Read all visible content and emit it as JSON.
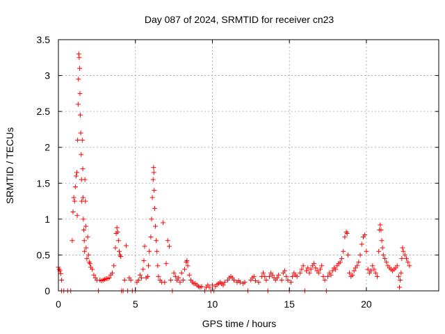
{
  "chart_data": {
    "type": "scatter",
    "title": "Day 087 of 2024, SRMTID for receiver cn23",
    "xlabel": "GPS time / hours",
    "ylabel": "SRMTID / TECUs",
    "xlim": [
      0,
      24.7
    ],
    "ylim": [
      0,
      3.5
    ],
    "xticks": [
      0,
      5,
      10,
      15,
      20
    ],
    "xtick_labels": [
      "0",
      "5",
      "10",
      "15",
      "20"
    ],
    "yticks": [
      0,
      0.5,
      1,
      1.5,
      2,
      2.5,
      3,
      3.5
    ],
    "ytick_labels": [
      "0",
      "0.5",
      "1",
      "1.5",
      "2",
      "2.5",
      "3",
      "3.5"
    ],
    "grid": true,
    "marker": "+",
    "color": "#ff0000",
    "series": [
      {
        "name": "SRMTID",
        "points": [
          [
            0.0,
            0.33
          ],
          [
            0.05,
            0.3
          ],
          [
            0.1,
            0.28
          ],
          [
            0.15,
            0.24
          ],
          [
            0.2,
            0.15
          ],
          [
            0.2,
            0.0
          ],
          [
            0.35,
            0.0
          ],
          [
            0.6,
            0.0
          ],
          [
            0.8,
            0.0
          ],
          [
            0.9,
            0.7
          ],
          [
            0.95,
            1.1
          ],
          [
            1.0,
            1.3
          ],
          [
            1.05,
            1.25
          ],
          [
            1.1,
            1.45
          ],
          [
            1.15,
            1.6
          ],
          [
            1.2,
            1.65
          ],
          [
            1.22,
            1.05
          ],
          [
            1.25,
            2.1
          ],
          [
            1.28,
            2.6
          ],
          [
            1.3,
            2.95
          ],
          [
            1.32,
            3.3
          ],
          [
            1.35,
            3.25
          ],
          [
            1.38,
            3.1
          ],
          [
            1.4,
            2.75
          ],
          [
            1.42,
            2.45
          ],
          [
            1.45,
            2.2
          ],
          [
            1.48,
            1.9
          ],
          [
            1.5,
            1.55
          ],
          [
            1.52,
            1.25
          ],
          [
            1.55,
            2.1
          ],
          [
            1.58,
            1.7
          ],
          [
            1.6,
            1.3
          ],
          [
            1.62,
            1.0
          ],
          [
            1.65,
            0.85
          ],
          [
            1.68,
            0.7
          ],
          [
            1.7,
            0.55
          ],
          [
            1.72,
            1.55
          ],
          [
            1.75,
            1.25
          ],
          [
            1.78,
            0.9
          ],
          [
            1.8,
            0.6
          ],
          [
            1.85,
            0.45
          ],
          [
            1.9,
            0.75
          ],
          [
            1.95,
            0.5
          ],
          [
            2.0,
            0.4
          ],
          [
            2.05,
            0.38
          ],
          [
            2.1,
            0.33
          ],
          [
            2.2,
            0.3
          ],
          [
            2.3,
            0.22
          ],
          [
            2.4,
            0.18
          ],
          [
            2.5,
            0.15
          ],
          [
            2.6,
            0.0
          ],
          [
            2.7,
            0.15
          ],
          [
            2.8,
            0.14
          ],
          [
            2.9,
            0.15
          ],
          [
            3.0,
            0.16
          ],
          [
            3.1,
            0.17
          ],
          [
            3.2,
            0.17
          ],
          [
            3.3,
            0.18
          ],
          [
            3.4,
            0.22
          ],
          [
            3.5,
            0.25
          ],
          [
            3.6,
            0.35
          ],
          [
            3.7,
            0.6
          ],
          [
            3.75,
            0.8
          ],
          [
            3.8,
            0.88
          ],
          [
            3.85,
            0.82
          ],
          [
            3.9,
            0.7
          ],
          [
            3.95,
            0.55
          ],
          [
            4.0,
            0.5
          ],
          [
            4.05,
            0.48
          ],
          [
            4.1,
            0.0
          ],
          [
            4.2,
            0.0
          ],
          [
            4.3,
            0.15
          ],
          [
            4.4,
            0.63
          ],
          [
            4.5,
            0.0
          ],
          [
            4.6,
            0.18
          ],
          [
            4.7,
            0.15
          ],
          [
            4.8,
            0.0
          ],
          [
            5.0,
            0.0
          ],
          [
            5.1,
            0.12
          ],
          [
            5.2,
            0.15
          ],
          [
            5.3,
            0.22
          ],
          [
            5.4,
            0.18
          ],
          [
            5.5,
            0.3
          ],
          [
            5.55,
            0.42
          ],
          [
            5.6,
            0.62
          ],
          [
            5.7,
            0.18
          ],
          [
            5.8,
            0.2
          ],
          [
            5.85,
            0.35
          ],
          [
            5.9,
            0.55
          ],
          [
            6.0,
            0.75
          ],
          [
            6.05,
            1.0
          ],
          [
            6.1,
            1.3
          ],
          [
            6.15,
            1.55
          ],
          [
            6.18,
            1.72
          ],
          [
            6.2,
            1.65
          ],
          [
            6.22,
            1.4
          ],
          [
            6.25,
            1.15
          ],
          [
            6.3,
            0.9
          ],
          [
            6.35,
            0.7
          ],
          [
            6.4,
            0.55
          ],
          [
            6.45,
            0.35
          ],
          [
            6.5,
            0.2
          ],
          [
            6.6,
            0.15
          ],
          [
            6.7,
            0.12
          ],
          [
            6.8,
            0.95
          ],
          [
            6.9,
            0.12
          ],
          [
            7.0,
            0.38
          ],
          [
            7.1,
            0.7
          ],
          [
            7.2,
            0.62
          ],
          [
            7.3,
            0.15
          ],
          [
            7.4,
            0.0
          ],
          [
            7.5,
            0.25
          ],
          [
            7.6,
            0.2
          ],
          [
            7.7,
            0.15
          ],
          [
            7.8,
            0.18
          ],
          [
            7.9,
            0.12
          ],
          [
            8.0,
            0.25
          ],
          [
            8.1,
            0.15
          ],
          [
            8.2,
            0.3
          ],
          [
            8.3,
            0.4
          ],
          [
            8.35,
            0.42
          ],
          [
            8.4,
            0.35
          ],
          [
            8.5,
            0.22
          ],
          [
            8.6,
            0.15
          ],
          [
            8.7,
            0.12
          ],
          [
            8.8,
            0.1
          ],
          [
            8.9,
            0.1
          ],
          [
            9.0,
            0.08
          ],
          [
            9.1,
            0.06
          ],
          [
            9.2,
            0.05
          ],
          [
            9.3,
            0.06
          ],
          [
            9.5,
            0.0
          ],
          [
            9.6,
            0.05
          ],
          [
            9.7,
            0.08
          ],
          [
            9.8,
            0.05
          ],
          [
            9.9,
            0.0
          ],
          [
            10.0,
            0.08
          ],
          [
            10.1,
            0.0
          ],
          [
            10.2,
            0.06
          ],
          [
            10.3,
            0.09
          ],
          [
            10.4,
            0.1
          ],
          [
            10.5,
            0.12
          ],
          [
            10.6,
            0.1
          ],
          [
            10.7,
            0.08
          ],
          [
            10.8,
            0.12
          ],
          [
            11.0,
            0.15
          ],
          [
            11.1,
            0.18
          ],
          [
            11.2,
            0.2
          ],
          [
            11.3,
            0.18
          ],
          [
            11.4,
            0.15
          ],
          [
            11.6,
            0.12
          ],
          [
            11.7,
            0.14
          ],
          [
            11.8,
            0.12
          ],
          [
            12.0,
            0.1
          ],
          [
            12.1,
            0.12
          ],
          [
            12.3,
            0.0
          ],
          [
            12.5,
            0.15
          ],
          [
            12.6,
            0.18
          ],
          [
            12.7,
            0.2
          ],
          [
            12.8,
            0.14
          ],
          [
            13.0,
            0.12
          ],
          [
            13.2,
            0.2
          ],
          [
            13.3,
            0.25
          ],
          [
            13.4,
            0.2
          ],
          [
            13.5,
            0.15
          ],
          [
            13.6,
            0.0
          ],
          [
            13.7,
            0.2
          ],
          [
            13.8,
            0.25
          ],
          [
            13.9,
            0.22
          ],
          [
            14.0,
            0.18
          ],
          [
            14.1,
            0.15
          ],
          [
            14.2,
            0.18
          ],
          [
            14.3,
            0.22
          ],
          [
            14.5,
            0.15
          ],
          [
            14.6,
            0.25
          ],
          [
            14.7,
            0.28
          ],
          [
            14.8,
            0.2
          ],
          [
            14.9,
            0.15
          ],
          [
            15.0,
            0.0
          ],
          [
            15.1,
            0.12
          ],
          [
            15.2,
            0.2
          ],
          [
            15.3,
            0.25
          ],
          [
            15.4,
            0.22
          ],
          [
            15.5,
            0.2
          ],
          [
            15.7,
            0.25
          ],
          [
            15.8,
            0.3
          ],
          [
            15.9,
            0.35
          ],
          [
            16.0,
            0.0
          ],
          [
            16.1,
            0.28
          ],
          [
            16.2,
            0.32
          ],
          [
            16.3,
            0.25
          ],
          [
            16.4,
            0.3
          ],
          [
            16.5,
            0.35
          ],
          [
            16.6,
            0.38
          ],
          [
            16.7,
            0.32
          ],
          [
            16.8,
            0.28
          ],
          [
            16.9,
            0.25
          ],
          [
            17.0,
            0.3
          ],
          [
            17.1,
            0.35
          ],
          [
            17.2,
            0.2
          ],
          [
            17.3,
            0.15
          ],
          [
            17.4,
            0.0
          ],
          [
            17.5,
            0.2
          ],
          [
            17.6,
            0.25
          ],
          [
            17.7,
            0.22
          ],
          [
            17.8,
            0.28
          ],
          [
            17.9,
            0.32
          ],
          [
            18.0,
            0.3
          ],
          [
            18.1,
            0.35
          ],
          [
            18.2,
            0.38
          ],
          [
            18.3,
            0.4
          ],
          [
            18.4,
            0.45
          ],
          [
            18.5,
            0.55
          ],
          [
            18.6,
            0.75
          ],
          [
            18.7,
            0.82
          ],
          [
            18.75,
            0.8
          ],
          [
            18.8,
            0.5
          ],
          [
            18.9,
            0.25
          ],
          [
            19.0,
            0.2
          ],
          [
            19.1,
            0.22
          ],
          [
            19.2,
            0.28
          ],
          [
            19.3,
            0.32
          ],
          [
            19.4,
            0.35
          ],
          [
            19.5,
            0.4
          ],
          [
            19.6,
            0.5
          ],
          [
            19.7,
            0.65
          ],
          [
            19.8,
            0.75
          ],
          [
            19.9,
            0.78
          ],
          [
            20.0,
            0.55
          ],
          [
            20.1,
            0.3
          ],
          [
            20.2,
            0.25
          ],
          [
            20.3,
            0.28
          ],
          [
            20.4,
            0.35
          ],
          [
            20.5,
            0.3
          ],
          [
            20.6,
            0.25
          ],
          [
            20.7,
            0.2
          ],
          [
            20.8,
            0.55
          ],
          [
            20.85,
            0.85
          ],
          [
            20.9,
            0.92
          ],
          [
            20.95,
            0.85
          ],
          [
            21.0,
            0.7
          ],
          [
            21.05,
            0.6
          ],
          [
            21.1,
            0.5
          ],
          [
            21.2,
            0.45
          ],
          [
            21.3,
            0.4
          ],
          [
            21.4,
            0.35
          ],
          [
            21.5,
            0.32
          ],
          [
            21.6,
            0.3
          ],
          [
            21.7,
            0.28
          ],
          [
            21.8,
            0.3
          ],
          [
            21.9,
            0.32
          ],
          [
            22.0,
            0.35
          ],
          [
            22.1,
            0.2
          ],
          [
            22.15,
            0.05
          ],
          [
            22.2,
            0.15
          ],
          [
            22.25,
            0.25
          ],
          [
            22.3,
            0.45
          ],
          [
            22.35,
            0.6
          ],
          [
            22.4,
            0.55
          ],
          [
            22.5,
            0.5
          ],
          [
            22.6,
            0.45
          ],
          [
            22.7,
            0.4
          ],
          [
            22.8,
            0.35
          ]
        ]
      }
    ]
  }
}
